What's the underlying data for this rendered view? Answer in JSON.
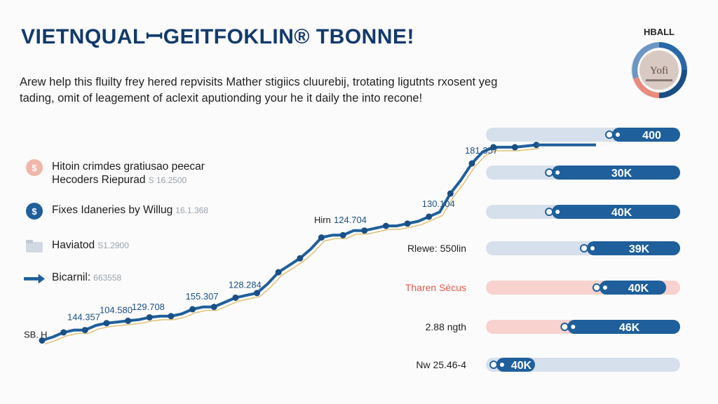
{
  "header": {
    "title": "VIETNQUALꟷGEITFOKLIN® TBONNE!",
    "subtitle_line1": "Arew help this fluilty frey hered repvisits Mather stigiics cluurebij, trotating ligutnts rxosent yeg",
    "subtitle_line2": "tading, omit of leagement of aclexit aputionding your he it daily the into recone!",
    "corner_label": "HBALL"
  },
  "badge": {
    "text": "Yofi"
  },
  "legend": [
    {
      "line1": "Hitoin crimdes gratiusao peecar",
      "line2": "Hecoders Riepurad",
      "num": "S 16.2500",
      "icon": "bitcoin-icon"
    },
    {
      "line1": "Fixes Idaneries by Willug",
      "num": "16.1.368",
      "icon": "dollar-icon"
    },
    {
      "line1": "Haviatod",
      "num": "S1.2900",
      "icon": "folder-icon"
    },
    {
      "line1": "Bicarnil:",
      "num": "663558",
      "icon": "arrow-icon"
    }
  ],
  "chart_data": {
    "type": "line",
    "series": [
      {
        "values": [
          [
            0,
            27
          ],
          [
            1,
            30
          ],
          [
            2,
            34
          ],
          [
            3,
            36
          ],
          [
            4,
            36
          ],
          [
            5,
            40
          ],
          [
            6,
            42
          ],
          [
            7,
            43
          ],
          [
            8,
            44
          ],
          [
            9,
            45
          ],
          [
            10,
            47
          ],
          [
            11,
            48
          ],
          [
            12,
            48
          ],
          [
            13,
            50
          ],
          [
            14,
            54
          ],
          [
            15,
            56
          ],
          [
            16,
            56
          ],
          [
            17,
            60
          ],
          [
            18,
            64
          ],
          [
            19,
            66
          ],
          [
            20,
            68
          ],
          [
            21,
            76
          ],
          [
            22,
            86
          ],
          [
            23,
            92
          ],
          [
            24,
            98
          ],
          [
            25,
            106
          ],
          [
            26,
            116
          ],
          [
            27,
            118
          ],
          [
            28,
            118
          ],
          [
            29,
            122
          ],
          [
            30,
            122
          ],
          [
            31,
            124
          ],
          [
            32,
            126
          ],
          [
            33,
            126
          ],
          [
            34,
            128
          ],
          [
            35,
            130
          ],
          [
            36,
            134
          ],
          [
            37,
            138
          ],
          [
            38,
            154
          ],
          [
            39,
            166
          ],
          [
            40,
            180
          ],
          [
            41,
            190
          ],
          [
            42,
            194
          ],
          [
            43,
            194
          ],
          [
            44,
            194
          ],
          [
            45,
            195
          ],
          [
            46,
            196
          ]
        ]
      }
    ],
    "annotations": [
      {
        "text": "SB.",
        "point": 0
      },
      {
        "text": "H",
        "point": 0
      },
      {
        "text": "144.357",
        "point": 3
      },
      {
        "text": "104.580",
        "point": 6
      },
      {
        "text": "129.708",
        "point": 9
      },
      {
        "text": "155.307",
        "point": 14
      },
      {
        "text": "128.284",
        "point": 18
      },
      {
        "text": "Hirn",
        "point": 22
      },
      {
        "text": "124.704",
        "point": 22
      },
      {
        "text": "130.104",
        "point": 36
      },
      {
        "text": "181.357",
        "point": 40
      }
    ],
    "bars": [
      {
        "label": "",
        "value_label": "400",
        "fill_fraction": 0.35,
        "track_color": "#d6e0ec",
        "fill_color": "#1f5f9b"
      },
      {
        "label": "",
        "value_label": "30K",
        "fill_fraction": 0.66,
        "track_color": "#d6e0ec",
        "fill_color": "#1f5f9b"
      },
      {
        "label": "",
        "value_label": "40K",
        "fill_fraction": 0.66,
        "track_color": "#d6e0ec",
        "fill_color": "#1f5f9b"
      },
      {
        "label": "Rlewe: 550lin",
        "value_label": "39K",
        "fill_fraction": 0.48,
        "track_color": "#d6e0ec",
        "fill_color": "#1f5f9b"
      },
      {
        "label": "Tharen Sécus",
        "value_label": "40K",
        "fill_fraction": 0.33,
        "track_color": "#f7d2ce",
        "fill_color": "#1f5f9b",
        "label_color": "#e05a4a",
        "fill_from_end": false
      },
      {
        "label": "2.88 ngth",
        "value_label": "46K",
        "fill_fraction": 0.58,
        "track_color": "#f7d2ce",
        "fill_color": "#1f5f9b"
      },
      {
        "label": "Nw 25.46-4",
        "value_label": "40K",
        "fill_fraction": 0.2,
        "track_color": "#d6e0ec",
        "fill_color": "#1f5f9b"
      }
    ]
  },
  "colors": {
    "primary": "#1f5f9b",
    "accent_gold": "#d6b255",
    "salmon": "#e88a7c"
  }
}
